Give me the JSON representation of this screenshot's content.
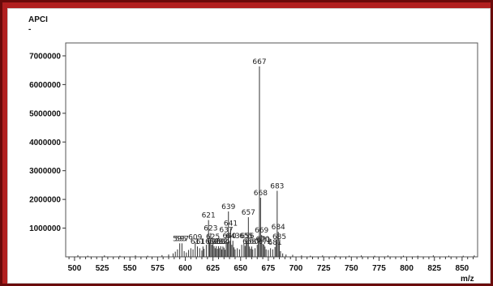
{
  "window": {
    "frame_color": "#b11f1f",
    "panel_color": "#ffffff"
  },
  "chart_data": {
    "type": "bar",
    "title": "APCI",
    "subtitle": "-",
    "xlabel": "m/z",
    "ylabel": "",
    "xlim": [
      492,
      864
    ],
    "ylim": [
      0,
      7450000
    ],
    "x_ticks": [
      500,
      525,
      550,
      575,
      600,
      625,
      650,
      675,
      700,
      725,
      750,
      775,
      800,
      825,
      850
    ],
    "y_ticks": [
      1000000,
      2000000,
      3000000,
      4000000,
      5000000,
      6000000,
      7000000
    ],
    "y_tick_labels": [
      "1000000",
      "2000000",
      "3000000",
      "4000000",
      "5000000",
      "6000000",
      "7000000"
    ],
    "x_tick_labels": [
      "500",
      "525",
      "550",
      "575",
      "600",
      "625",
      "650",
      "675",
      "700",
      "725",
      "750",
      "775",
      "800",
      "825",
      "850"
    ],
    "grid": false,
    "bar_color": "#333333",
    "peaks": [
      {
        "x": 667,
        "y": 6630000,
        "label": "667"
      },
      {
        "x": 683,
        "y": 2300000,
        "label": "683"
      },
      {
        "x": 668,
        "y": 2060000,
        "label": "668"
      },
      {
        "x": 639,
        "y": 1580000,
        "label": "639"
      },
      {
        "x": 657,
        "y": 1380000,
        "label": "657"
      },
      {
        "x": 621,
        "y": 1280000,
        "label": "621"
      },
      {
        "x": 641,
        "y": 1000000,
        "label": "641"
      },
      {
        "x": 684,
        "y": 870000,
        "label": "684"
      },
      {
        "x": 623,
        "y": 830000,
        "label": "623"
      },
      {
        "x": 637,
        "y": 780000,
        "label": "637"
      },
      {
        "x": 669,
        "y": 760000,
        "label": "669"
      },
      {
        "x": 625,
        "y": 540000,
        "label": "625"
      },
      {
        "x": 640,
        "y": 560000,
        "label": "640"
      },
      {
        "x": 643,
        "y": 560000,
        "label": "643"
      },
      {
        "x": 655,
        "y": 560000,
        "label": "655"
      },
      {
        "x": 656,
        "y": 560000,
        "label": "656"
      },
      {
        "x": 685,
        "y": 540000,
        "label": "685"
      },
      {
        "x": 609,
        "y": 520000,
        "label": "609"
      },
      {
        "x": 595,
        "y": 470000,
        "label": "595"
      },
      {
        "x": 597,
        "y": 470000,
        "label": "597"
      },
      {
        "x": 670,
        "y": 450000,
        "label": "670"
      },
      {
        "x": 671,
        "y": 430000,
        "label": "671"
      },
      {
        "x": 611,
        "y": 360000,
        "label": "611"
      },
      {
        "x": 616,
        "y": 360000,
        "label": "616"
      },
      {
        "x": 626,
        "y": 370000,
        "label": "626"
      },
      {
        "x": 628,
        "y": 370000,
        "label": "628"
      },
      {
        "x": 630,
        "y": 370000,
        "label": "630"
      },
      {
        "x": 632,
        "y": 370000,
        "label": "632"
      },
      {
        "x": 634,
        "y": 360000,
        "label": "634"
      },
      {
        "x": 658,
        "y": 360000,
        "label": "658"
      },
      {
        "x": 660,
        "y": 360000,
        "label": "660"
      },
      {
        "x": 672,
        "y": 360000,
        "label": "672"
      },
      {
        "x": 681,
        "y": 340000,
        "label": "681"
      }
    ],
    "minor_peaks": [
      [
        503,
        60000
      ],
      [
        512,
        40000
      ],
      [
        527,
        50000
      ],
      [
        541,
        40000
      ],
      [
        555,
        50000
      ],
      [
        566,
        40000
      ],
      [
        579,
        60000
      ],
      [
        585,
        80000
      ],
      [
        589,
        120000
      ],
      [
        591,
        180000
      ],
      [
        593,
        260000
      ],
      [
        599,
        200000
      ],
      [
        601,
        150000
      ],
      [
        603,
        240000
      ],
      [
        605,
        300000
      ],
      [
        607,
        260000
      ],
      [
        613,
        300000
      ],
      [
        615,
        220000
      ],
      [
        617,
        280000
      ],
      [
        619,
        420000
      ],
      [
        622,
        500000
      ],
      [
        624,
        420000
      ],
      [
        627,
        300000
      ],
      [
        629,
        280000
      ],
      [
        631,
        300000
      ],
      [
        633,
        260000
      ],
      [
        635,
        320000
      ],
      [
        636,
        250000
      ],
      [
        638,
        500000
      ],
      [
        642,
        420000
      ],
      [
        644,
        330000
      ],
      [
        645,
        260000
      ],
      [
        647,
        300000
      ],
      [
        649,
        260000
      ],
      [
        651,
        420000
      ],
      [
        653,
        480000
      ],
      [
        654,
        380000
      ],
      [
        659,
        280000
      ],
      [
        661,
        260000
      ],
      [
        663,
        300000
      ],
      [
        665,
        420000
      ],
      [
        666,
        520000
      ],
      [
        673,
        260000
      ],
      [
        675,
        240000
      ],
      [
        677,
        300000
      ],
      [
        679,
        260000
      ],
      [
        682,
        600000
      ],
      [
        686,
        200000
      ],
      [
        688,
        120000
      ],
      [
        691,
        80000
      ],
      [
        697,
        70000
      ],
      [
        705,
        50000
      ],
      [
        713,
        40000
      ],
      [
        724,
        50000
      ],
      [
        736,
        40000
      ],
      [
        748,
        40000
      ],
      [
        759,
        50000
      ],
      [
        771,
        40000
      ],
      [
        783,
        50000
      ],
      [
        797,
        40000
      ],
      [
        810,
        40000
      ],
      [
        824,
        50000
      ],
      [
        838,
        40000
      ],
      [
        851,
        40000
      ],
      [
        861,
        50000
      ]
    ]
  }
}
